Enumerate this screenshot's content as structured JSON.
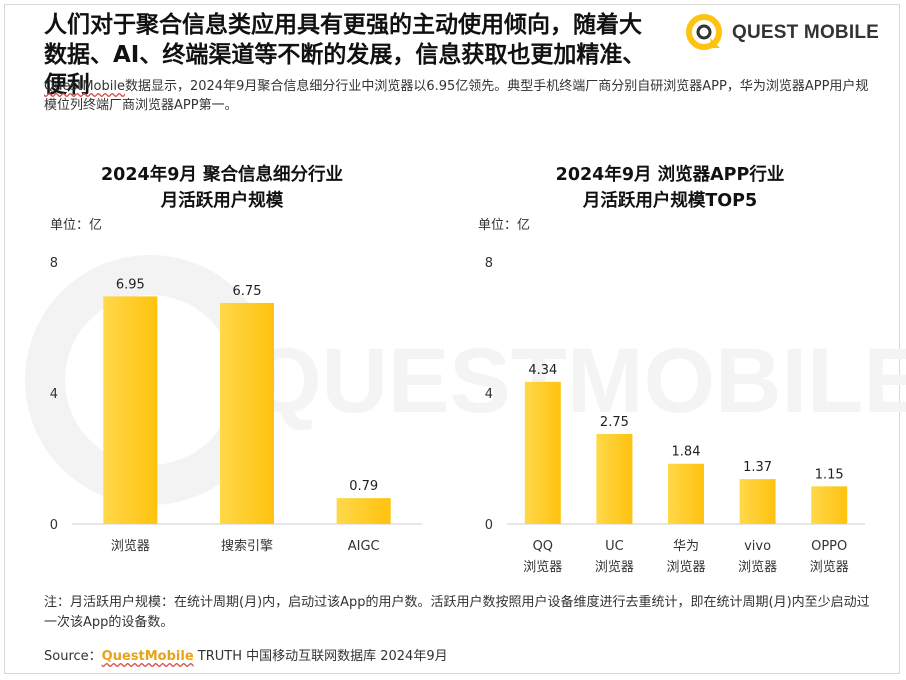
{
  "header": {
    "headline": "人们对于聚合信息类应用具有更强的主动使用倾向，随着大数据、AI、终端渠道等不断的发展，信息获取也更加精准、便利",
    "logo_text": "QUEST MOBILE"
  },
  "summary": {
    "brand": "QuestMobile",
    "text": "数据显示，2024年9月聚合信息细分行业中浏览器以6.95亿领先。典型手机终端厂商分别自研浏览器APP，华为浏览器APP用户规模位列终端厂商浏览器APP第一。"
  },
  "watermark_text": "QUESTMOBILE",
  "colors": {
    "bar": "#FFC20E",
    "bar_light": "#FFD84A",
    "brand": "#E8A317"
  },
  "chart_data": [
    {
      "type": "bar",
      "title_line1": "2024年9月 聚合信息细分行业",
      "title_line2": "月活跃用户规模",
      "unit": "单位：亿",
      "categories": [
        "浏览器",
        "搜索引擎",
        "AIGC"
      ],
      "values": [
        6.95,
        6.75,
        0.79
      ],
      "value_labels": [
        "6.95",
        "6.75",
        "0.79"
      ],
      "yticks": [
        "0",
        "4",
        "8"
      ],
      "ylim": [
        0,
        8
      ],
      "grid": false
    },
    {
      "type": "bar",
      "title_line1": "2024年9月 浏览器APP行业",
      "title_line2": "月活跃用户规模TOP5",
      "unit": "单位：亿",
      "categories": [
        [
          "QQ",
          "浏览器"
        ],
        [
          "UC",
          "浏览器"
        ],
        [
          "华为",
          "浏览器"
        ],
        [
          "vivo",
          "浏览器"
        ],
        [
          "OPPO",
          "浏览器"
        ]
      ],
      "values": [
        4.34,
        2.75,
        1.84,
        1.37,
        1.15
      ],
      "value_labels": [
        "4.34",
        "2.75",
        "1.84",
        "1.37",
        "1.15"
      ],
      "yticks": [
        "0",
        "4",
        "8"
      ],
      "ylim": [
        0,
        8
      ],
      "grid": false
    }
  ],
  "footnote": {
    "text": "注：月活跃用户规模：在统计周期(月)内，启动过该App的用户数。活跃用户数按照用户设备维度进行去重统计，即在统计周期(月)内至少启动过一次该App的设备数。"
  },
  "source": {
    "label": "Source：",
    "brand": "QuestMobile",
    "text": " TRUTH 中国移动互联网数据库 2024年9月"
  }
}
